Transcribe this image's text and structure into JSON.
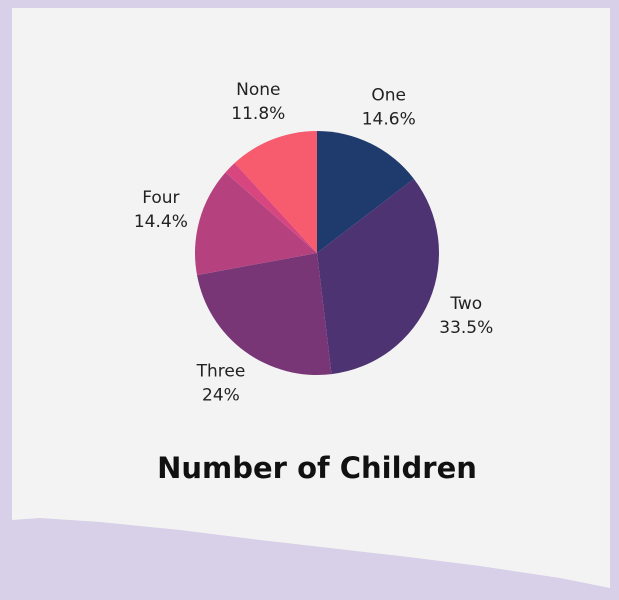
{
  "chart_data": {
    "type": "pie",
    "title": "Number of Children",
    "categories": [
      "One",
      "Two",
      "Three",
      "Four",
      null,
      "None"
    ],
    "values": [
      14.6,
      33.5,
      24,
      14.4,
      1.7,
      11.8
    ],
    "value_labels": [
      "14.6%",
      "33.5%",
      "24%",
      "14.4%",
      null,
      "11.8%"
    ],
    "colors": [
      "#1f3a6c",
      "#4d3371",
      "#793677",
      "#b5417f",
      "#d7467f",
      "#f65b6e"
    ]
  }
}
